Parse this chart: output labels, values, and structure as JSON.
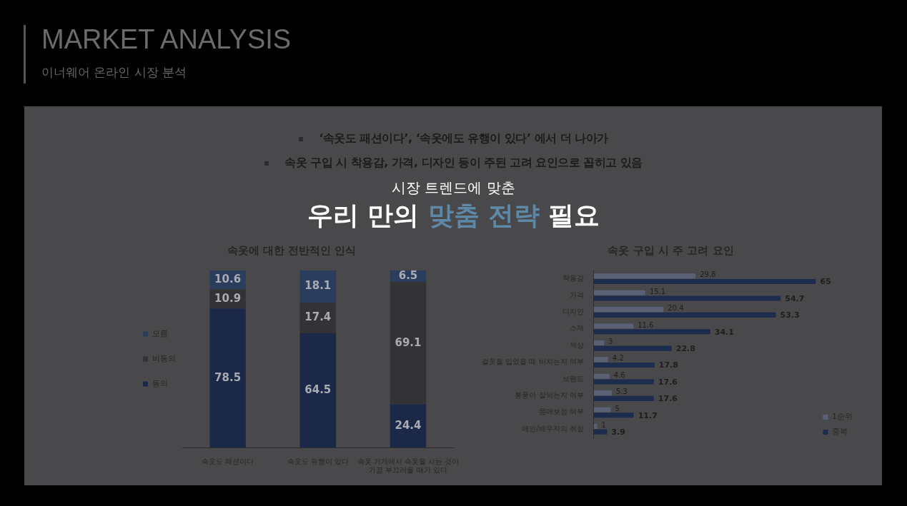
{
  "chart_data": [
    {
      "type": "other",
      "title": "MARKET ANALYSIS",
      "subtitle": "이너웨어 온라인 시장 분석",
      "annotations": [
        "‘속옷도 패션이다’, ‘속옷에도 유행이 있다’ 에서 더 나아가",
        "속옷 구입 시 착용감, 가격, 디자인 등이 주된 고려 요인으로 꼽히고 있음",
        "시장 트렌드에 맞춘",
        "우리 만의",
        "맞춤 전략",
        "필요"
      ]
    },
    {
      "type": "bar",
      "title": "속옷에 대한 전반적인 인식",
      "categories": [
        "속옷도 패션이다",
        "속옷도 유행이 있다",
        "속옷 가게에서 속옷을 사는 것이 가끔 부끄러울 때가 있다"
      ],
      "stacked": true,
      "series": [
        {
          "name": "동의",
          "color": "#1b2848",
          "values": [
            78.5,
            64.5,
            24.4
          ]
        },
        {
          "name": "비동의",
          "color": "#333335",
          "values": [
            10.9,
            17.4,
            69.1
          ]
        },
        {
          "name": "모름",
          "color": "#2b3d5d",
          "values": [
            10.6,
            18.1,
            6.5
          ]
        }
      ],
      "data_labels": true,
      "legend": "left",
      "tick_labels": "x"
    },
    {
      "type": "bar",
      "orientation": "horizontal",
      "title": "속옷 구입 시 주 고려 요인",
      "categories": [
        "착용감",
        "가격",
        "디자인",
        "소재",
        "색상",
        "겉옷을 입었을 때 비치는지 여부",
        "브랜드",
        "통풍이 잘되는지 여부",
        "몸매보정 여부",
        "애인/배우자의 취향"
      ],
      "series": [
        {
          "name": "1순위",
          "color": "#5a6174",
          "values": [
            29.8,
            15.1,
            20.4,
            11.6,
            3,
            4.2,
            4.6,
            5.3,
            5,
            1
          ]
        },
        {
          "name": "중복",
          "color": "#1d2b4c",
          "values": [
            65,
            54.7,
            53.3,
            34.1,
            22.8,
            17.8,
            17.6,
            17.6,
            11.7,
            3.9
          ]
        }
      ],
      "data_labels": true,
      "legend": "bottom right",
      "tick_labels": "y"
    }
  ]
}
